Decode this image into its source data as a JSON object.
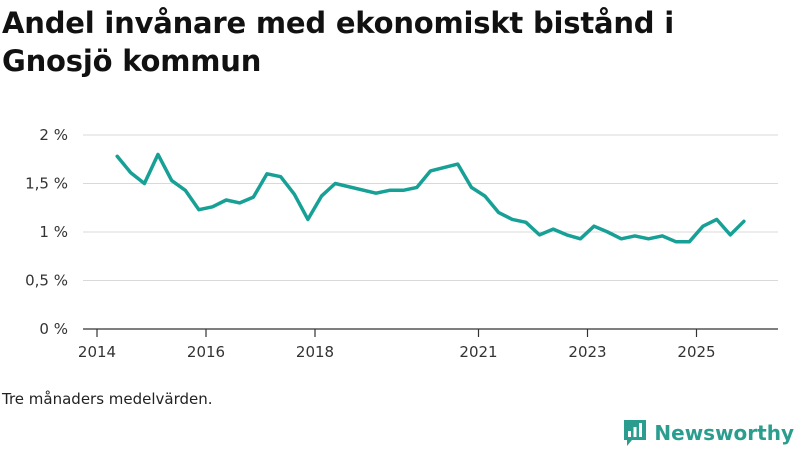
{
  "title": "Andel invånare med ekonomiskt bistånd i Gnosjö kommun",
  "footnote": "Tre månaders medelvärden.",
  "brand": {
    "name": "Newsworthy",
    "icon": "newsworthy-logo-icon"
  },
  "colors": {
    "line": "#17a095",
    "brand": "#2a9d8f",
    "grid": "#d9d9d9",
    "axis": "#333333"
  },
  "chart_data": {
    "type": "line",
    "title": "Andel invånare med ekonomiskt bistånd i Gnosjö kommun",
    "xlabel": "",
    "ylabel": "",
    "xlim": [
      2014,
      2026.5
    ],
    "ylim": [
      0,
      2
    ],
    "y_ticks": [
      {
        "value": 0,
        "label": "0 %"
      },
      {
        "value": 0.5,
        "label": "0,5 %"
      },
      {
        "value": 1,
        "label": "1 %"
      },
      {
        "value": 1.5,
        "label": "1,5 %"
      },
      {
        "value": 2,
        "label": "2 %"
      }
    ],
    "x_ticks": [
      {
        "value": 2014,
        "label": "2014"
      },
      {
        "value": 2016,
        "label": "2016"
      },
      {
        "value": 2018,
        "label": "2018"
      },
      {
        "value": 2021,
        "label": "2021"
      },
      {
        "value": 2023,
        "label": "2023"
      },
      {
        "value": 2025,
        "label": "2025"
      }
    ],
    "grid": true,
    "series": [
      {
        "name": "Andel invånare med ekonomiskt bistånd",
        "x": [
          2014.37,
          2014.62,
          2014.87,
          2015.12,
          2015.37,
          2015.62,
          2015.87,
          2016.12,
          2016.37,
          2016.62,
          2016.87,
          2017.12,
          2017.37,
          2017.62,
          2017.87,
          2018.12,
          2018.37,
          2019.12,
          2019.37,
          2019.62,
          2019.87,
          2020.12,
          2020.62,
          2020.87,
          2021.12,
          2021.37,
          2021.62,
          2021.87,
          2022.12,
          2022.37,
          2022.62,
          2022.87,
          2023.12,
          2023.37,
          2023.62,
          2023.87,
          2024.12,
          2024.37,
          2024.62,
          2024.87,
          2025.12,
          2025.37,
          2025.62,
          2025.87
        ],
        "values": [
          1.78,
          1.61,
          1.5,
          1.8,
          1.53,
          1.43,
          1.23,
          1.26,
          1.33,
          1.3,
          1.36,
          1.6,
          1.57,
          1.39,
          1.13,
          1.37,
          1.5,
          1.4,
          1.43,
          1.43,
          1.46,
          1.63,
          1.7,
          1.46,
          1.37,
          1.2,
          1.13,
          1.1,
          0.97,
          1.03,
          0.97,
          0.93,
          1.06,
          1.0,
          0.93,
          0.96,
          0.93,
          0.96,
          0.9,
          0.9,
          1.06,
          1.13,
          0.97,
          1.11
        ]
      }
    ]
  }
}
